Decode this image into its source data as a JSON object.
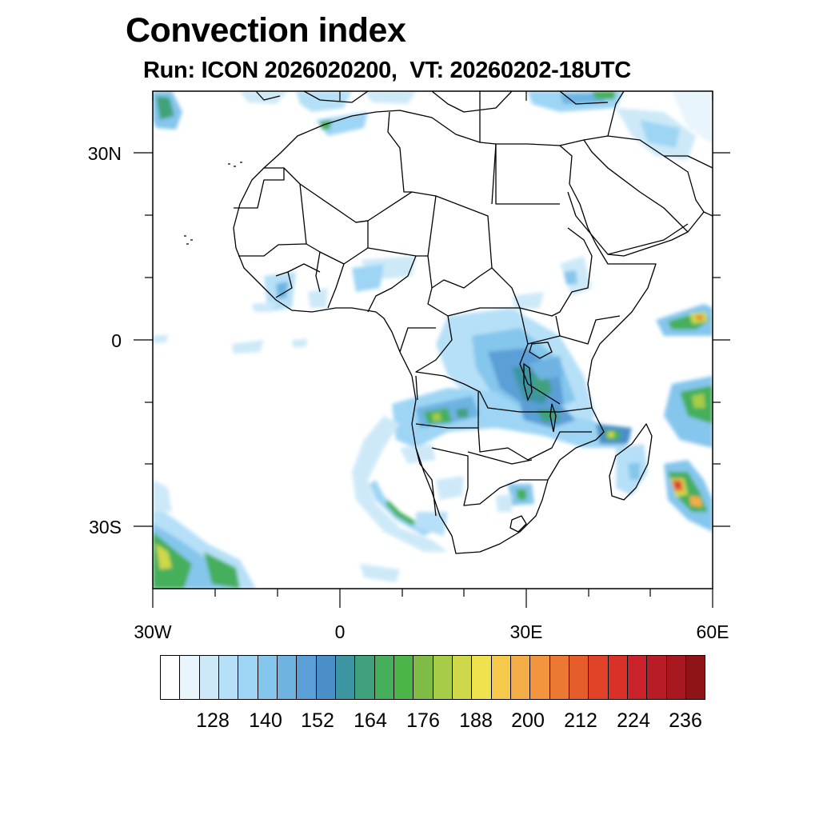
{
  "title": "Convection index",
  "subtitle": "Run: ICON 2026020200,  VT: 20260202-18UTC",
  "axes": {
    "lat_labels": [
      "30N",
      "0",
      "30S"
    ],
    "lon_labels": [
      "30W",
      "0",
      "30E",
      "60E"
    ]
  },
  "colorbar": {
    "labels": [
      "128",
      "140",
      "152",
      "164",
      "176",
      "188",
      "200",
      "212",
      "224",
      "236"
    ],
    "colors": [
      "#ffffff",
      "#e8f5fc",
      "#cde9f8",
      "#b6e0f7",
      "#9ed5f4",
      "#85c6ec",
      "#6eb3e2",
      "#5a9fd6",
      "#4a8fc7",
      "#3e95a2",
      "#40a27c",
      "#45af5c",
      "#4cb548",
      "#7fbc45",
      "#a7cc47",
      "#cfd84a",
      "#f0e14e",
      "#f6c84b",
      "#f5ae47",
      "#f3953f",
      "#ed7834",
      "#e65d2c",
      "#e04228",
      "#d93128",
      "#c9222b",
      "#b81c26",
      "#a81820",
      "#8e1418"
    ]
  }
}
